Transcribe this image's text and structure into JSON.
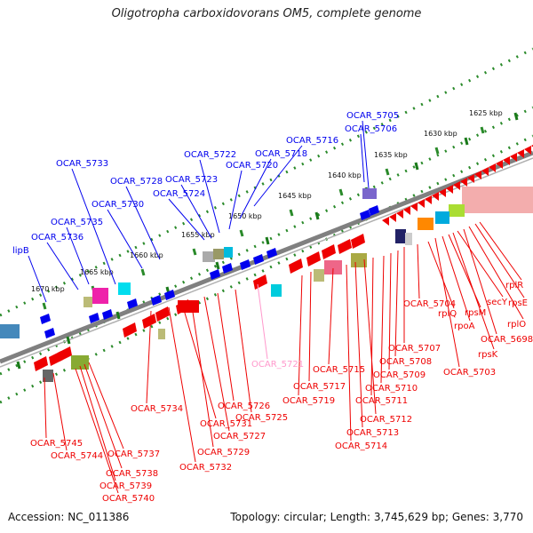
{
  "title": "Oligotropha carboxidovorans OM5, complete genome",
  "footer": {
    "accession": "Accession: NC_011386",
    "summary": "Topology: circular; Length: 3,745,629 bp; Genes: 3,770"
  },
  "colors": {
    "forward_genes": "#0000ee",
    "reverse_genes": "#ee0000",
    "rna_label": "#ff99cc",
    "backbone": "#808080",
    "scale_dots": "#2a8a2a"
  },
  "scale_ticks": [
    "1625 kbp",
    "1630 kbp",
    "1635 kbp",
    "1640 kbp",
    "1645 kbp",
    "1650 kbp",
    "1655 kbp",
    "1660 kbp",
    "1665 kbp",
    "1670 kbp"
  ],
  "forward_labels": [
    "OCAR_5705",
    "OCAR_5706",
    "OCAR_5716",
    "OCAR_5718",
    "OCAR_5720",
    "OCAR_5722",
    "OCAR_5723",
    "OCAR_5724",
    "OCAR_5728",
    "OCAR_5730",
    "OCAR_5733",
    "OCAR_5735",
    "OCAR_5736",
    "lipB"
  ],
  "reverse_labels": [
    "rplR",
    "rpsE",
    "rplO",
    "OCAR_5698",
    "secY",
    "rpsK",
    "rpsM",
    "rpoA",
    "OCAR_5703",
    "rplQ",
    "OCAR_5704",
    "OCAR_5707",
    "OCAR_5708",
    "OCAR_5709",
    "OCAR_5710",
    "OCAR_5711",
    "OCAR_5712",
    "OCAR_5713",
    "OCAR_5714",
    "OCAR_5715",
    "OCAR_5717",
    "OCAR_5719",
    "OCAR_5721",
    "OCAR_5725",
    "OCAR_5726",
    "OCAR_5727",
    "OCAR_5729",
    "OCAR_5731",
    "OCAR_5732",
    "OCAR_5734",
    "OCAR_5737",
    "OCAR_5738",
    "OCAR_5739",
    "OCAR_5740",
    "OCAR_5744",
    "OCAR_5745"
  ]
}
